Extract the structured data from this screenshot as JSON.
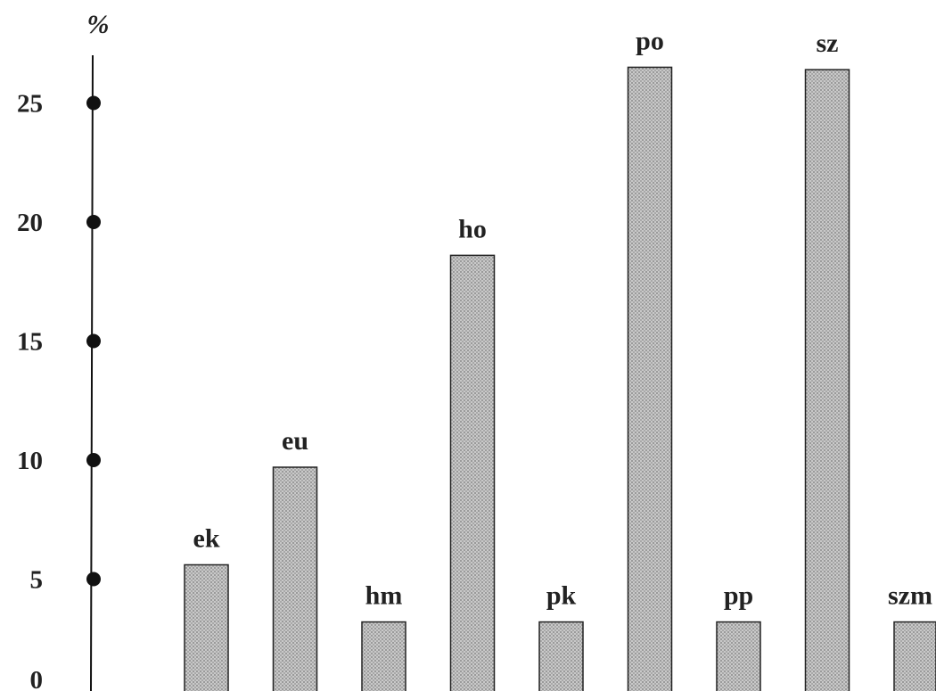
{
  "chart_data": {
    "type": "bar",
    "title": "",
    "xlabel": "",
    "ylabel": "%",
    "categories": [
      "ek",
      "eu",
      "hm",
      "ho",
      "pk",
      "po",
      "pp",
      "sz",
      "szm"
    ],
    "values": [
      5.6,
      9.7,
      3.2,
      18.6,
      3.2,
      26.5,
      3.2,
      26.4,
      3.2
    ],
    "ylim": [
      0,
      25
    ],
    "yticks": [
      {
        "value": 0,
        "label": "0"
      },
      {
        "value": 5,
        "label": "5"
      },
      {
        "value": 10,
        "label": "10"
      },
      {
        "value": 15,
        "label": "15"
      },
      {
        "value": 20,
        "label": "20"
      },
      {
        "value": 25,
        "label": "25"
      }
    ],
    "grid": false,
    "legend": "none",
    "bar_color": "#b8b8b8",
    "bar_edge_color": "#222222",
    "axis_color": "#111111"
  }
}
